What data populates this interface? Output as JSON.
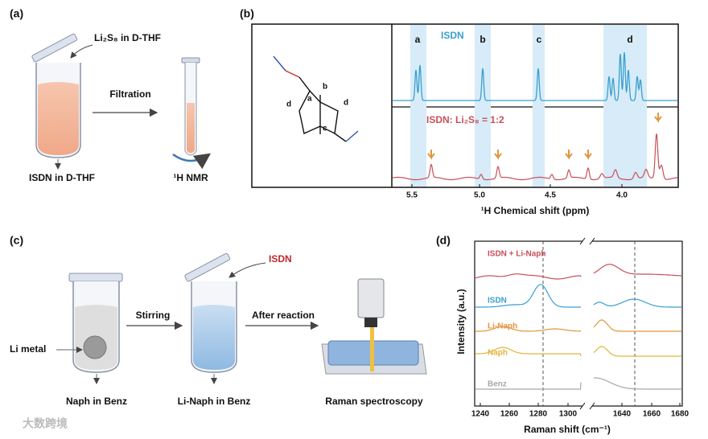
{
  "panel_a": {
    "label": "(a)",
    "reagent": "Li₂S₈ in D-THF",
    "step": "Filtration",
    "vial": "ISDN in D-THF",
    "tube": "¹H NMR"
  },
  "panel_b": {
    "label": "(b)",
    "molecule_labels": [
      "a",
      "b",
      "c",
      "d",
      "d"
    ],
    "top_trace": "ISDN",
    "bottom_trace": "ISDN: Li₂S₈ = 1:2",
    "peak_labels": [
      "a",
      "b",
      "c",
      "d"
    ],
    "xticks": [
      "5.5",
      "5.0",
      "4.5",
      "4.0"
    ],
    "xlabel": "¹H Chemical shift (ppm)"
  },
  "panel_c": {
    "label": "(c)",
    "reagent": "ISDN",
    "steps": [
      "Stirring",
      "After reaction"
    ],
    "metal": "Li metal",
    "vial_1": "Naph in Benz",
    "vial_2": "Li-Naph in Benz",
    "instrument": "Raman spectroscopy"
  },
  "panel_d": {
    "label": "(d)",
    "traces": [
      "ISDN + Li-Naph",
      "ISDN",
      "Li-Naph",
      "Naph",
      "Benz"
    ],
    "trace_colors": [
      "#c8505a",
      "#3a9fd0",
      "#e0963c",
      "#e2b63a",
      "#a8a8a8"
    ],
    "ylabel": "Intensity (a.u.)",
    "xlabel": "Raman shift (cm⁻¹)",
    "xticks_left": [
      "1240",
      "1260",
      "1280",
      "1300"
    ],
    "xticks_right": [
      "1640",
      "1660",
      "1680"
    ]
  },
  "watermark": "大数跨境"
}
